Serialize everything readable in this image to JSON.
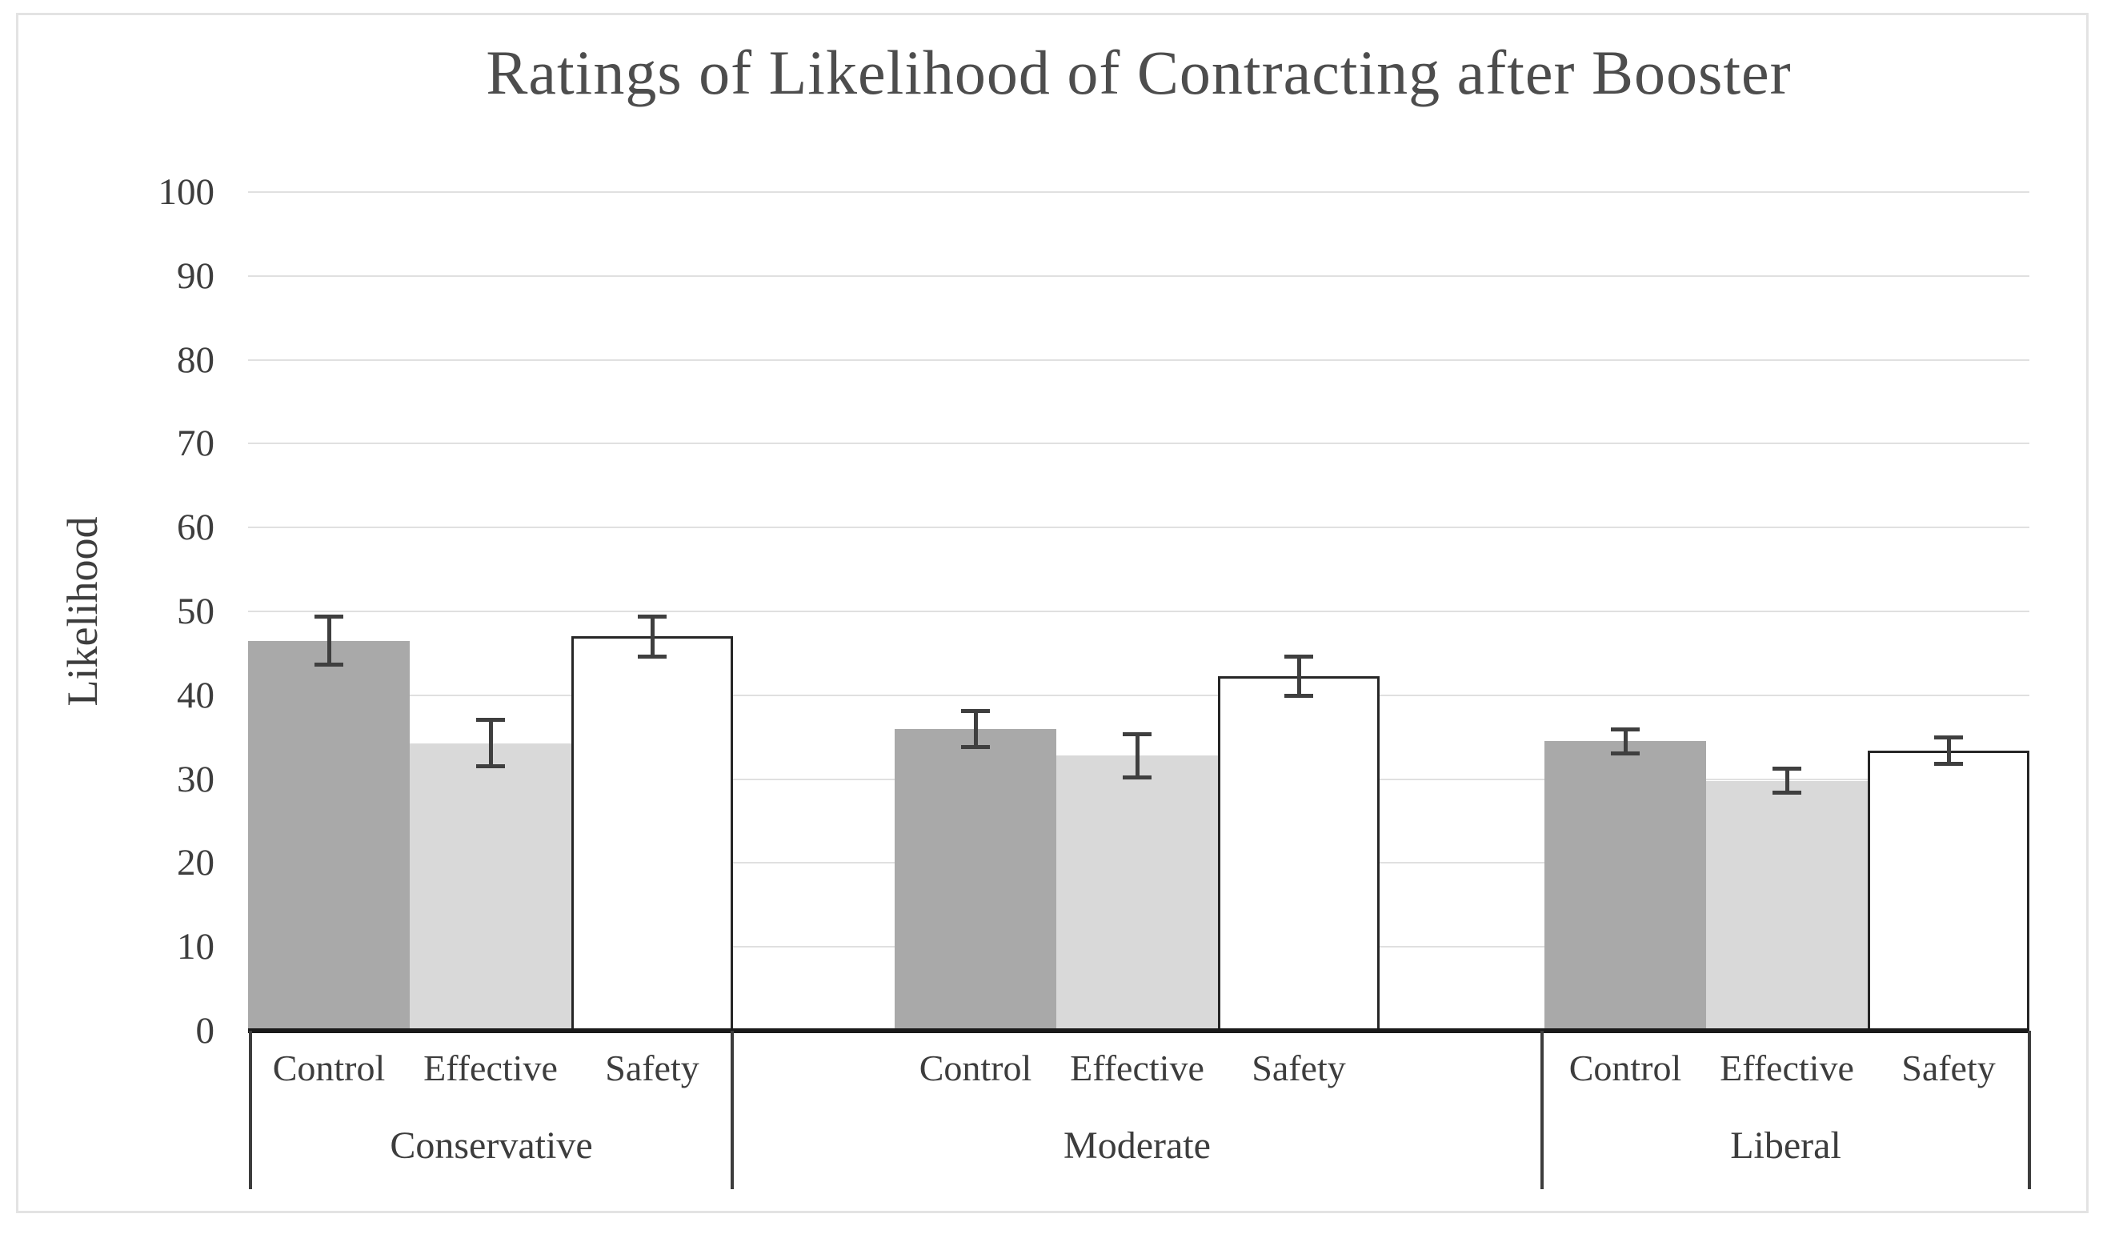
{
  "chart_data": {
    "type": "bar",
    "title": "Ratings of Likelihood of Contracting after Booster",
    "xlabel": "",
    "ylabel": "Likelihood",
    "ylim": [
      0,
      100
    ],
    "ytick_interval": 10,
    "yticks": [
      0,
      10,
      20,
      30,
      40,
      50,
      60,
      70,
      80,
      90,
      100
    ],
    "grid": "horizontal",
    "legend_position": "none",
    "categories": [
      "Control",
      "Effective",
      "Safety"
    ],
    "groups": [
      {
        "label": "Conservative",
        "bars": [
          {
            "series": "Control",
            "value": 46.5,
            "error": 2.9
          },
          {
            "series": "Effective",
            "value": 34.3,
            "error": 2.8
          },
          {
            "series": "Safety",
            "value": 47.0,
            "error": 2.4
          }
        ]
      },
      {
        "label": "Moderate",
        "bars": [
          {
            "series": "Control",
            "value": 36.0,
            "error": 2.2
          },
          {
            "series": "Effective",
            "value": 32.8,
            "error": 2.6
          },
          {
            "series": "Safety",
            "value": 42.3,
            "error": 2.4
          }
        ]
      },
      {
        "label": "Liberal",
        "bars": [
          {
            "series": "Control",
            "value": 34.5,
            "error": 1.5
          },
          {
            "series": "Effective",
            "value": 29.8,
            "error": 1.5
          },
          {
            "series": "Safety",
            "value": 33.4,
            "error": 1.6
          }
        ]
      }
    ],
    "colors": {
      "control_fill": "#a9a9a9",
      "effective_fill": "#d9d9d9",
      "safety_fill": "#ffffff",
      "safety_border": "#262626",
      "error_bar": "#3f3f3f",
      "gridline": "#e0e0e0",
      "axis_line": "#1a1a1a",
      "divider": "#3d3d3d",
      "text": "#3d3d3d",
      "title_text": "#4d4d4d",
      "figure_border": "#e3e3e3"
    }
  }
}
